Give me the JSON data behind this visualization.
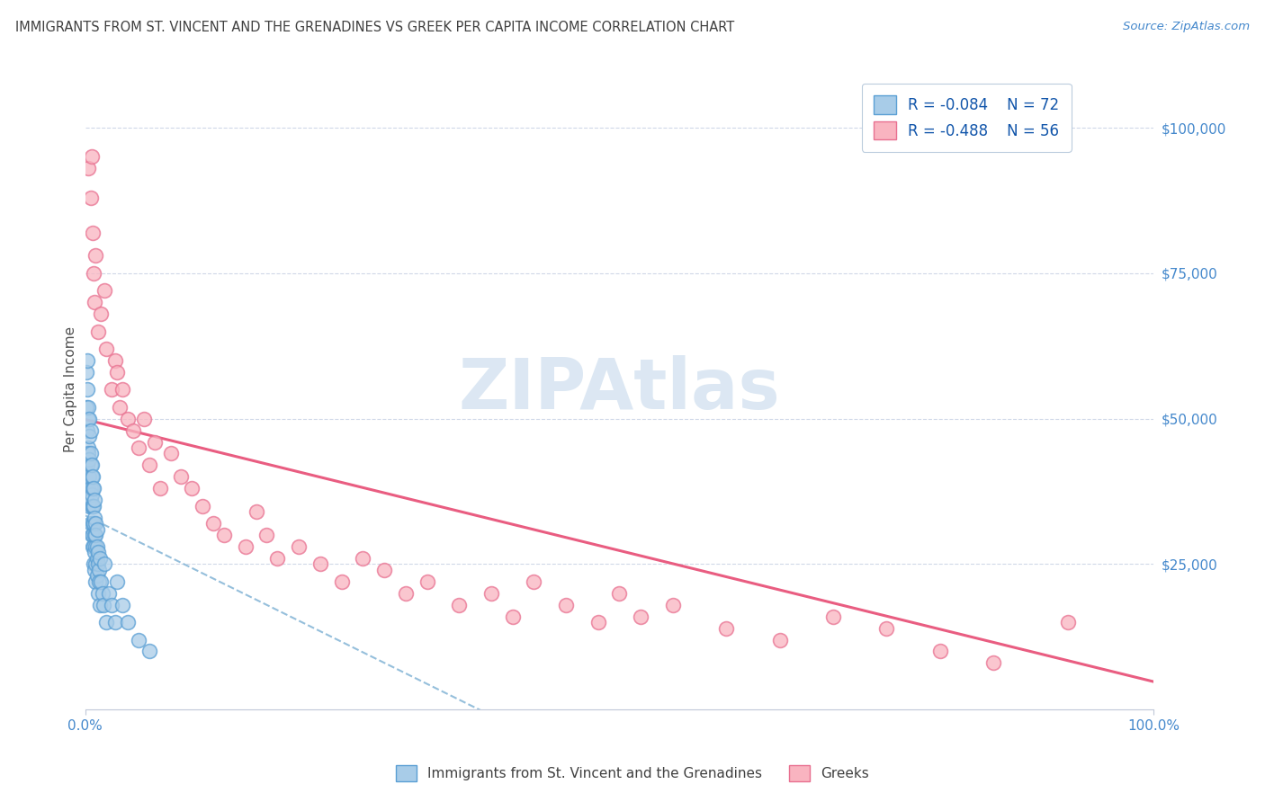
{
  "title": "IMMIGRANTS FROM ST. VINCENT AND THE GRENADINES VS GREEK PER CAPITA INCOME CORRELATION CHART",
  "source": "Source: ZipAtlas.com",
  "ylabel": "Per Capita Income",
  "xlim": [
    0,
    1.0
  ],
  "ylim": [
    0,
    110000
  ],
  "yticks": [
    0,
    25000,
    50000,
    75000,
    100000
  ],
  "ytick_labels": [
    "",
    "$25,000",
    "$50,000",
    "$75,000",
    "$100,000"
  ],
  "xtick_labels": [
    "0.0%",
    "100.0%"
  ],
  "legend_labels": [
    "Immigrants from St. Vincent and the Grenadines",
    "Greeks"
  ],
  "R_blue": -0.084,
  "N_blue": 72,
  "R_pink": -0.488,
  "N_pink": 56,
  "blue_color": "#a8cce8",
  "blue_edge_color": "#5a9fd4",
  "pink_color": "#f9b4c0",
  "pink_edge_color": "#e87090",
  "blue_line_color": "#8ab8d8",
  "pink_line_color": "#e8547a",
  "watermark_color": "#c5d8eb",
  "grid_color": "#d0d8e8",
  "spine_color": "#c0c8d8",
  "title_color": "#404040",
  "source_color": "#4488cc",
  "tick_color": "#4488cc",
  "axis_label_color": "#505050",
  "blue_scatter_x": [
    0.001,
    0.001,
    0.002,
    0.002,
    0.002,
    0.002,
    0.003,
    0.003,
    0.003,
    0.003,
    0.003,
    0.004,
    0.004,
    0.004,
    0.004,
    0.004,
    0.005,
    0.005,
    0.005,
    0.005,
    0.005,
    0.005,
    0.006,
    0.006,
    0.006,
    0.006,
    0.006,
    0.007,
    0.007,
    0.007,
    0.007,
    0.007,
    0.007,
    0.008,
    0.008,
    0.008,
    0.008,
    0.008,
    0.009,
    0.009,
    0.009,
    0.009,
    0.009,
    0.01,
    0.01,
    0.01,
    0.01,
    0.01,
    0.011,
    0.011,
    0.011,
    0.011,
    0.012,
    0.012,
    0.012,
    0.013,
    0.013,
    0.014,
    0.014,
    0.015,
    0.016,
    0.017,
    0.018,
    0.02,
    0.022,
    0.025,
    0.028,
    0.03,
    0.035,
    0.04,
    0.05,
    0.06
  ],
  "blue_scatter_y": [
    58000,
    52000,
    60000,
    42000,
    55000,
    48000,
    50000,
    45000,
    52000,
    38000,
    44000,
    47000,
    40000,
    43000,
    35000,
    50000,
    42000,
    38000,
    44000,
    36000,
    48000,
    32000,
    40000,
    35000,
    42000,
    30000,
    37000,
    38000,
    32000,
    35000,
    28000,
    40000,
    30000,
    35000,
    28000,
    32000,
    25000,
    38000,
    30000,
    27000,
    33000,
    24000,
    36000,
    28000,
    25000,
    32000,
    22000,
    30000,
    26000,
    28000,
    23000,
    31000,
    25000,
    27000,
    20000,
    24000,
    22000,
    26000,
    18000,
    22000,
    20000,
    18000,
    25000,
    15000,
    20000,
    18000,
    15000,
    22000,
    18000,
    15000,
    12000,
    10000
  ],
  "pink_scatter_x": [
    0.003,
    0.005,
    0.006,
    0.007,
    0.008,
    0.009,
    0.01,
    0.012,
    0.015,
    0.018,
    0.02,
    0.025,
    0.028,
    0.03,
    0.032,
    0.035,
    0.04,
    0.045,
    0.05,
    0.055,
    0.06,
    0.065,
    0.07,
    0.08,
    0.09,
    0.1,
    0.11,
    0.12,
    0.13,
    0.15,
    0.16,
    0.17,
    0.18,
    0.2,
    0.22,
    0.24,
    0.26,
    0.28,
    0.3,
    0.32,
    0.35,
    0.38,
    0.4,
    0.42,
    0.45,
    0.48,
    0.5,
    0.52,
    0.55,
    0.6,
    0.65,
    0.7,
    0.75,
    0.8,
    0.85,
    0.92
  ],
  "pink_scatter_y": [
    93000,
    88000,
    95000,
    82000,
    75000,
    70000,
    78000,
    65000,
    68000,
    72000,
    62000,
    55000,
    60000,
    58000,
    52000,
    55000,
    50000,
    48000,
    45000,
    50000,
    42000,
    46000,
    38000,
    44000,
    40000,
    38000,
    35000,
    32000,
    30000,
    28000,
    34000,
    30000,
    26000,
    28000,
    25000,
    22000,
    26000,
    24000,
    20000,
    22000,
    18000,
    20000,
    16000,
    22000,
    18000,
    15000,
    20000,
    16000,
    18000,
    14000,
    12000,
    16000,
    14000,
    10000,
    8000,
    15000
  ]
}
